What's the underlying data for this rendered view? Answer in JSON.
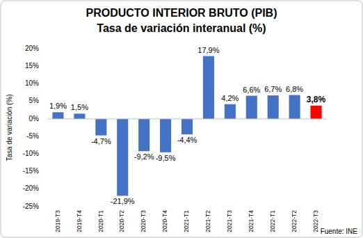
{
  "chart_data": {
    "type": "bar",
    "title": "PRODUCTO INTERIOR BRUTO (PIB)",
    "subtitle": "Tasa de variación interanual (%)",
    "y_label": "Tasa de variación (%)",
    "annotations": [
      "Fuente: INE"
    ],
    "categories": [
      "2019-T3",
      "2019-T4",
      "2020-T1",
      "2020-T2",
      "2020-T3",
      "2020-T4",
      "2021-T1",
      "2021-T2",
      "2021-T3",
      "2021-T4",
      "2022-T1",
      "2022-T2",
      "2022-T3"
    ],
    "values": [
      1.9,
      1.5,
      -4.7,
      -21.9,
      -9.2,
      -9.5,
      -4.4,
      17.9,
      4.2,
      6.6,
      6.7,
      6.8,
      3.8
    ],
    "value_labels": [
      "1,9%",
      "1,5%",
      "-4,7%",
      "-21,9%",
      "-9,2%",
      "-9,5%",
      "-4,4%",
      "17,9%",
      "4,2%",
      "6,6%",
      "6,7%",
      "6,8%",
      "3,8%"
    ],
    "colors": [
      "#4472c4",
      "#4472c4",
      "#4472c4",
      "#4472c4",
      "#4472c4",
      "#4472c4",
      "#4472c4",
      "#4472c4",
      "#4472c4",
      "#4472c4",
      "#4472c4",
      "#4472c4",
      "#ff0000"
    ],
    "ylim": [
      -25,
      20
    ],
    "yticks": [
      {
        "value": -25,
        "label": "-25%"
      },
      {
        "value": -20,
        "label": "-20%"
      },
      {
        "value": -15,
        "label": "-15%"
      },
      {
        "value": -10,
        "label": "-10%"
      },
      {
        "value": -5,
        "label": "-5%"
      },
      {
        "value": 0,
        "label": "0%"
      },
      {
        "value": 5,
        "label": "5%"
      },
      {
        "value": 10,
        "label": "10%"
      },
      {
        "value": 15,
        "label": "15%"
      },
      {
        "value": 20,
        "label": "20%"
      }
    ],
    "grid": false,
    "data_labels": true
  }
}
